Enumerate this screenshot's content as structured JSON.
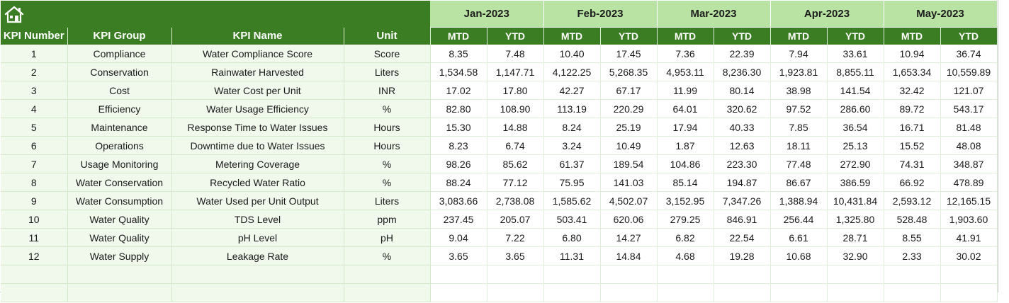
{
  "header": {
    "home_icon": "home-icon",
    "months": [
      "Jan-2023",
      "Feb-2023",
      "Mar-2023",
      "Apr-2023",
      "May-2023"
    ],
    "columns": {
      "kpi_number": "KPI Number",
      "kpi_group": "KPI Group",
      "kpi_name": "KPI Name",
      "unit": "Unit",
      "mtd": "MTD",
      "ytd": "YTD"
    }
  },
  "rows": [
    {
      "num": "1",
      "group": "Compliance",
      "name": "Water Compliance Score",
      "unit": "Score",
      "v": [
        "8.35",
        "7.48",
        "10.40",
        "17.45",
        "7.36",
        "22.39",
        "7.94",
        "33.61",
        "10.94",
        "36.74"
      ]
    },
    {
      "num": "2",
      "group": "Conservation",
      "name": "Rainwater Harvested",
      "unit": "Liters",
      "v": [
        "1,534.58",
        "1,147.71",
        "4,122.25",
        "5,268.35",
        "4,953.11",
        "8,236.30",
        "1,923.81",
        "8,855.11",
        "1,653.34",
        "10,559.89"
      ]
    },
    {
      "num": "3",
      "group": "Cost",
      "name": "Water Cost per Unit",
      "unit": "INR",
      "v": [
        "17.02",
        "17.80",
        "42.27",
        "67.17",
        "11.99",
        "80.14",
        "38.98",
        "141.54",
        "32.42",
        "121.07"
      ]
    },
    {
      "num": "4",
      "group": "Efficiency",
      "name": "Water Usage Efficiency",
      "unit": "%",
      "v": [
        "82.80",
        "108.90",
        "113.19",
        "220.29",
        "64.01",
        "320.62",
        "97.52",
        "286.60",
        "89.72",
        "543.17"
      ]
    },
    {
      "num": "5",
      "group": "Maintenance",
      "name": "Response Time to Water Issues",
      "unit": "Hours",
      "v": [
        "15.30",
        "14.88",
        "8.24",
        "25.19",
        "17.94",
        "40.33",
        "7.85",
        "36.54",
        "16.71",
        "81.48"
      ]
    },
    {
      "num": "6",
      "group": "Operations",
      "name": "Downtime due to Water Issues",
      "unit": "Hours",
      "v": [
        "8.23",
        "6.74",
        "3.24",
        "10.49",
        "1.87",
        "12.63",
        "18.11",
        "25.13",
        "15.52",
        "48.08"
      ]
    },
    {
      "num": "7",
      "group": "Usage Monitoring",
      "name": "Metering Coverage",
      "unit": "%",
      "v": [
        "98.26",
        "85.62",
        "61.37",
        "189.54",
        "104.86",
        "223.30",
        "77.48",
        "272.90",
        "74.31",
        "348.87"
      ]
    },
    {
      "num": "8",
      "group": "Water Conservation",
      "name": "Recycled Water Ratio",
      "unit": "%",
      "v": [
        "88.24",
        "77.12",
        "75.95",
        "141.03",
        "85.14",
        "194.87",
        "86.67",
        "386.59",
        "66.92",
        "478.89"
      ]
    },
    {
      "num": "9",
      "group": "Water Consumption",
      "name": "Water Used per Unit Output",
      "unit": "Liters",
      "v": [
        "3,083.66",
        "2,738.08",
        "1,585.62",
        "4,502.07",
        "3,152.95",
        "7,347.26",
        "1,388.94",
        "10,431.84",
        "2,593.12",
        "12,165.15"
      ]
    },
    {
      "num": "10",
      "group": "Water Quality",
      "name": "TDS Level",
      "unit": "ppm",
      "v": [
        "237.45",
        "205.07",
        "503.41",
        "620.06",
        "279.25",
        "846.91",
        "256.44",
        "1,325.80",
        "528.48",
        "1,903.60"
      ]
    },
    {
      "num": "11",
      "group": "Water Quality",
      "name": "pH Level",
      "unit": "pH",
      "v": [
        "9.04",
        "7.22",
        "6.80",
        "14.27",
        "6.82",
        "22.54",
        "6.61",
        "28.71",
        "8.55",
        "41.91"
      ]
    },
    {
      "num": "12",
      "group": "Water Supply",
      "name": "Leakage Rate",
      "unit": "%",
      "v": [
        "3.65",
        "3.65",
        "11.31",
        "14.84",
        "4.68",
        "19.28",
        "10.68",
        "32.90",
        "2.33",
        "30.02"
      ]
    }
  ],
  "empty_rows": 2,
  "colors": {
    "dark_green": "#3a7d22",
    "light_green": "#b8e3a3",
    "pale_green": "#f1f9ec"
  }
}
